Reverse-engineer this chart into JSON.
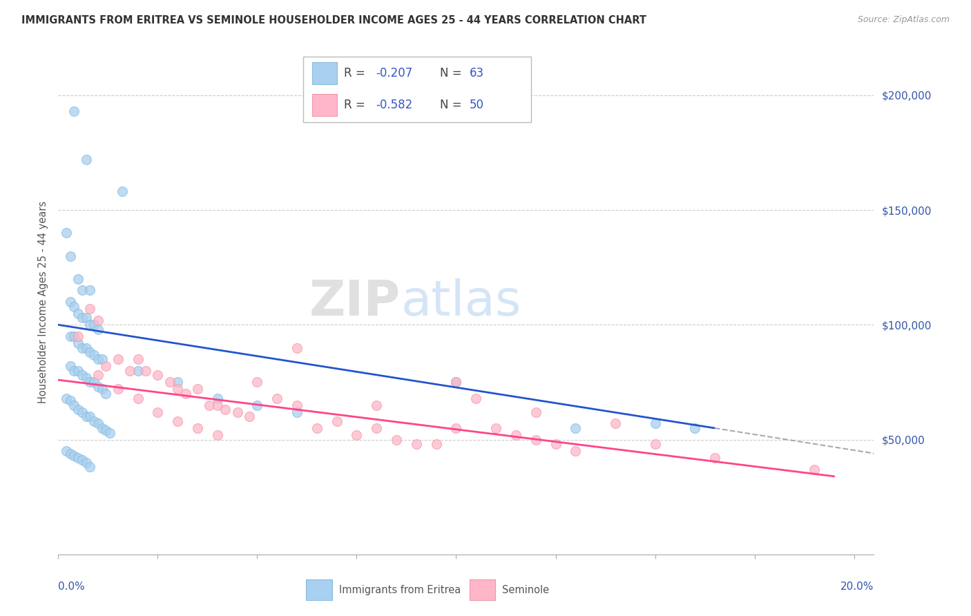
{
  "title": "IMMIGRANTS FROM ERITREA VS SEMINOLE HOUSEHOLDER INCOME AGES 25 - 44 YEARS CORRELATION CHART",
  "source": "Source: ZipAtlas.com",
  "ylabel": "Householder Income Ages 25 - 44 years",
  "yticks": [
    0,
    50000,
    100000,
    150000,
    200000
  ],
  "ytick_labels": [
    "",
    "$50,000",
    "$100,000",
    "$150,000",
    "$200,000"
  ],
  "xlim": [
    0.0,
    0.205
  ],
  "ylim": [
    0,
    220000
  ],
  "eritrea_color": "#a8d0f0",
  "seminole_color": "#ffb6c8",
  "eritrea_line_color": "#2255cc",
  "seminole_line_color": "#ff4488",
  "eritrea_scatter_x": [
    0.004,
    0.007,
    0.016,
    0.002,
    0.003,
    0.005,
    0.006,
    0.008,
    0.003,
    0.004,
    0.005,
    0.006,
    0.007,
    0.008,
    0.009,
    0.01,
    0.003,
    0.004,
    0.005,
    0.006,
    0.007,
    0.008,
    0.009,
    0.01,
    0.011,
    0.003,
    0.004,
    0.005,
    0.006,
    0.007,
    0.008,
    0.009,
    0.01,
    0.011,
    0.012,
    0.002,
    0.003,
    0.004,
    0.005,
    0.006,
    0.007,
    0.008,
    0.009,
    0.01,
    0.011,
    0.012,
    0.013,
    0.02,
    0.03,
    0.04,
    0.05,
    0.06,
    0.1,
    0.13,
    0.15,
    0.16,
    0.002,
    0.003,
    0.004,
    0.005,
    0.006,
    0.007,
    0.008
  ],
  "eritrea_scatter_y": [
    193000,
    172000,
    158000,
    140000,
    130000,
    120000,
    115000,
    115000,
    110000,
    108000,
    105000,
    103000,
    103000,
    100000,
    100000,
    98000,
    95000,
    95000,
    92000,
    90000,
    90000,
    88000,
    87000,
    85000,
    85000,
    82000,
    80000,
    80000,
    78000,
    77000,
    75000,
    75000,
    73000,
    72000,
    70000,
    68000,
    67000,
    65000,
    63000,
    62000,
    60000,
    60000,
    58000,
    57000,
    55000,
    54000,
    53000,
    80000,
    75000,
    68000,
    65000,
    62000,
    75000,
    55000,
    57000,
    55000,
    45000,
    44000,
    43000,
    42000,
    41000,
    40000,
    38000
  ],
  "seminole_scatter_x": [
    0.005,
    0.008,
    0.01,
    0.012,
    0.015,
    0.018,
    0.02,
    0.022,
    0.025,
    0.028,
    0.03,
    0.032,
    0.035,
    0.038,
    0.04,
    0.042,
    0.045,
    0.048,
    0.05,
    0.055,
    0.06,
    0.065,
    0.07,
    0.075,
    0.08,
    0.085,
    0.09,
    0.095,
    0.1,
    0.105,
    0.11,
    0.115,
    0.12,
    0.125,
    0.13,
    0.01,
    0.015,
    0.02,
    0.025,
    0.03,
    0.035,
    0.04,
    0.06,
    0.08,
    0.1,
    0.12,
    0.14,
    0.15,
    0.165,
    0.19
  ],
  "seminole_scatter_y": [
    95000,
    107000,
    102000,
    82000,
    85000,
    80000,
    85000,
    80000,
    78000,
    75000,
    72000,
    70000,
    72000,
    65000,
    65000,
    63000,
    62000,
    60000,
    75000,
    68000,
    65000,
    55000,
    58000,
    52000,
    55000,
    50000,
    48000,
    48000,
    75000,
    68000,
    55000,
    52000,
    50000,
    48000,
    45000,
    78000,
    72000,
    68000,
    62000,
    58000,
    55000,
    52000,
    90000,
    65000,
    55000,
    62000,
    57000,
    48000,
    42000,
    37000
  ],
  "blue_line_x0": 0.0,
  "blue_line_x1": 0.165,
  "blue_line_y0": 100000,
  "blue_line_y1": 55000,
  "pink_line_x0": 0.0,
  "pink_line_x1": 0.195,
  "pink_line_y0": 76000,
  "pink_line_y1": 34000,
  "dash_line_x0": 0.165,
  "dash_line_x1": 0.205,
  "dash_line_y0": 55000,
  "dash_line_y1": 44000
}
